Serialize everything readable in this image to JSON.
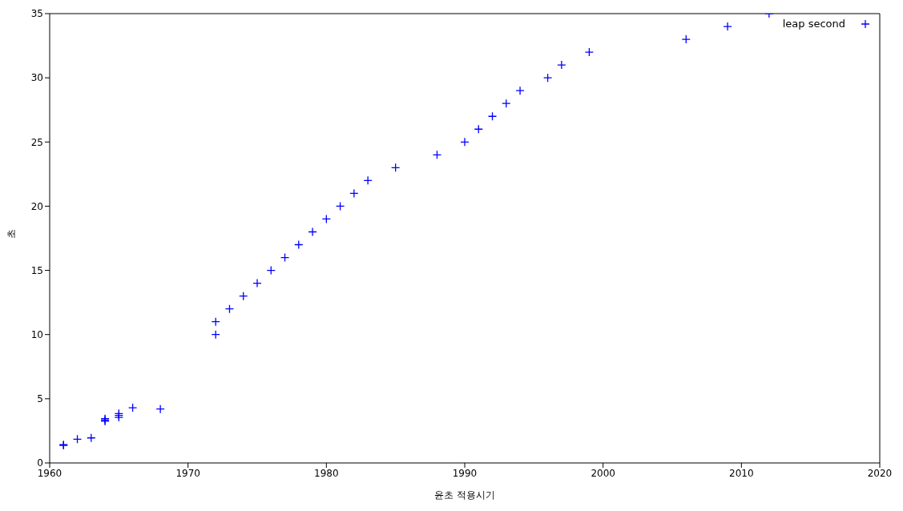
{
  "chart_data": {
    "type": "scatter",
    "xlabel": "윤초 적용시기",
    "ylabel": "초",
    "series": [
      {
        "name": "leap second",
        "color": "#0000ff",
        "x": [
          1961,
          1961,
          1962,
          1963,
          1964,
          1964,
          1964,
          1965,
          1965,
          1965,
          1966,
          1968,
          1972,
          1972,
          1973,
          1974,
          1975,
          1976,
          1977,
          1978,
          1979,
          1980,
          1981,
          1982,
          1983,
          1985,
          1988,
          1990,
          1991,
          1992,
          1993,
          1994,
          1996,
          1997,
          1999,
          2006,
          2009,
          2012
        ],
        "values": [
          1.42,
          1.37,
          1.85,
          1.95,
          3.25,
          3.35,
          3.45,
          3.55,
          3.7,
          3.85,
          4.3,
          4.2,
          10,
          11,
          12,
          13,
          14,
          15,
          16,
          17,
          18,
          19,
          20,
          21,
          22,
          23,
          24,
          25,
          26,
          27,
          28,
          29,
          30,
          31,
          32,
          33,
          34,
          35
        ]
      }
    ],
    "xlim": [
      1960,
      2020
    ],
    "xticks": [
      1960,
      1970,
      1980,
      1990,
      2000,
      2010,
      2020
    ],
    "ylim": [
      0,
      35
    ],
    "yticks": [
      0,
      5,
      10,
      15,
      20,
      25,
      30,
      35
    ],
    "grid": false,
    "legend": "top right",
    "marker": "cross"
  }
}
